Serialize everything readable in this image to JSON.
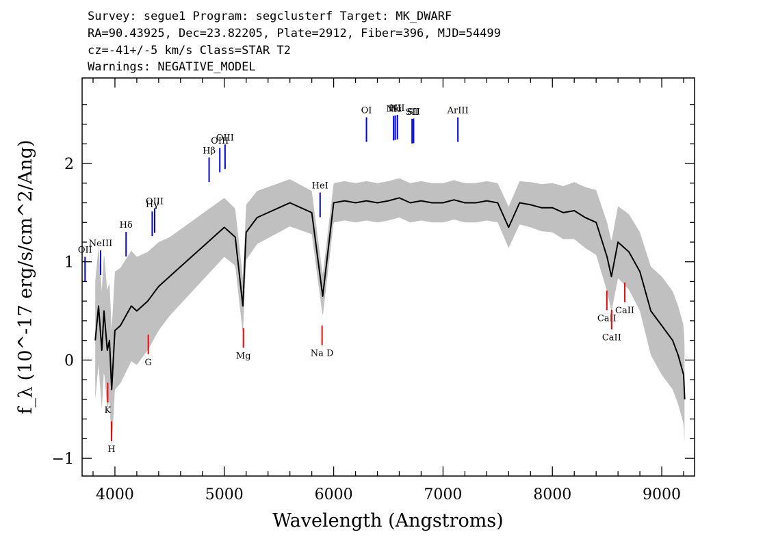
{
  "header": {
    "line1": "Survey: segue1 Program: segclusterf Target: MK_DWARF",
    "line2": "RA=90.43925, Dec=23.82205, Plate=2912, Fiber=396, MJD=54499",
    "line3": "cz=-41+/-5 km/s Class=STAR T2",
    "line4": "Warnings: NEGATIVE_MODEL"
  },
  "chart_data": {
    "type": "line",
    "xlabel": "Wavelength (Angstroms)",
    "ylabel": "f_λ (10^-17 erg/s/cm^2/Ang)",
    "xlim": [
      3700,
      9300
    ],
    "ylim": [
      -1.18,
      2.87
    ],
    "x_ticks": [
      4000,
      5000,
      6000,
      7000,
      8000,
      9000
    ],
    "y_ticks": [
      -1,
      0,
      1,
      2
    ],
    "x_tick_labels": [
      "4000",
      "5000",
      "6000",
      "7000",
      "8000",
      "9000"
    ],
    "y_tick_labels": [
      "−1",
      "0",
      "1",
      "2"
    ],
    "grid": false,
    "series": [
      {
        "role": "flux",
        "color": "#000000",
        "x": [
          3820,
          3850,
          3880,
          3900,
          3930,
          3950,
          3970,
          4000,
          4050,
          4100,
          4150,
          4200,
          4300,
          4400,
          4500,
          4600,
          4700,
          4800,
          4900,
          5000,
          5100,
          5170,
          5200,
          5300,
          5400,
          5500,
          5600,
          5700,
          5800,
          5900,
          6000,
          6100,
          6200,
          6300,
          6400,
          6500,
          6600,
          6700,
          6800,
          6900,
          7000,
          7100,
          7200,
          7300,
          7400,
          7500,
          7600,
          7700,
          7800,
          7900,
          8000,
          8100,
          8200,
          8300,
          8400,
          8500,
          8540,
          8600,
          8700,
          8800,
          8900,
          9000,
          9100,
          9150,
          9200,
          9210
        ],
        "y": [
          0.2,
          0.55,
          0.1,
          0.5,
          0.1,
          0.2,
          -0.3,
          0.3,
          0.35,
          0.45,
          0.55,
          0.5,
          0.6,
          0.75,
          0.85,
          0.95,
          1.05,
          1.15,
          1.25,
          1.35,
          1.25,
          0.55,
          1.3,
          1.45,
          1.5,
          1.55,
          1.6,
          1.55,
          1.5,
          0.65,
          1.6,
          1.62,
          1.6,
          1.62,
          1.6,
          1.62,
          1.65,
          1.6,
          1.62,
          1.6,
          1.6,
          1.63,
          1.6,
          1.6,
          1.62,
          1.6,
          1.35,
          1.6,
          1.58,
          1.55,
          1.55,
          1.5,
          1.52,
          1.45,
          1.4,
          1.05,
          0.85,
          1.2,
          1.1,
          0.9,
          0.5,
          0.35,
          0.2,
          0.05,
          -0.15,
          -0.4
        ]
      },
      {
        "role": "noise",
        "color": "#c0c0c0",
        "x": [
          3820,
          3900,
          4000,
          4200,
          4500,
          5000,
          5500,
          6000,
          6500,
          7000,
          7500,
          8000,
          8500,
          8800,
          9000,
          9100,
          9210
        ],
        "y": [
          0.6,
          0.6,
          0.6,
          0.55,
          0.4,
          0.3,
          0.25,
          0.2,
          0.2,
          0.2,
          0.2,
          0.25,
          0.35,
          0.4,
          0.5,
          0.5,
          0.5
        ]
      }
    ],
    "emission_lines": [
      {
        "label": "OII",
        "x": 3727,
        "color": "#0000ff"
      },
      {
        "label": "NeIII",
        "x": 3869,
        "color": "#0000ff"
      },
      {
        "label": "Hδ",
        "x": 4102,
        "color": "#0000ff"
      },
      {
        "label": "Hγ",
        "x": 4341,
        "color": "#0000ff"
      },
      {
        "label": "OIII",
        "x": 4363,
        "color": "#0000ff"
      },
      {
        "label": "Hβ",
        "x": 4861,
        "color": "#0000ff"
      },
      {
        "label": "OIII",
        "x": 4959,
        "color": "#0000ff"
      },
      {
        "label": "OIII",
        "x": 5007,
        "color": "#0000ff"
      },
      {
        "label": "HeI",
        "x": 5876,
        "color": "#0000ff"
      },
      {
        "label": "OI",
        "x": 6300,
        "color": "#0000ff"
      },
      {
        "label": "NII",
        "x": 6548,
        "color": "#0000ff"
      },
      {
        "label": "Hα",
        "x": 6563,
        "color": "#0000ff"
      },
      {
        "label": "NII",
        "x": 6583,
        "color": "#0000ff"
      },
      {
        "label": "SII",
        "x": 6717,
        "color": "#0000ff"
      },
      {
        "label": "SII",
        "x": 6731,
        "color": "#0000ff"
      },
      {
        "label": "ArIII",
        "x": 7136,
        "color": "#0000ff"
      }
    ],
    "absorption_lines": [
      {
        "label": "K",
        "x": 3934,
        "color": "#ff0000"
      },
      {
        "label": "H",
        "x": 3969,
        "color": "#ff0000"
      },
      {
        "label": "G",
        "x": 4305,
        "color": "#ff0000"
      },
      {
        "label": "Mg",
        "x": 5175,
        "color": "#ff0000"
      },
      {
        "label": "Na D",
        "x": 5894,
        "color": "#ff0000"
      },
      {
        "label": "CaII",
        "x": 8498,
        "color": "#ff0000"
      },
      {
        "label": "CaII",
        "x": 8542,
        "color": "#ff0000"
      },
      {
        "label": "CaII",
        "x": 8662,
        "color": "#ff0000"
      }
    ]
  }
}
